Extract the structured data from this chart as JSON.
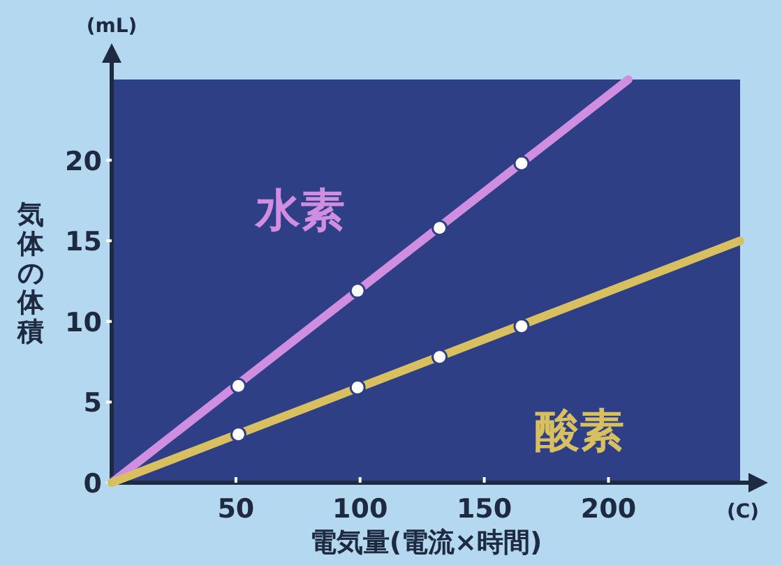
{
  "chart_data": {
    "type": "line",
    "xlabel": "電気量(電流×時間)",
    "ylabel": "気体の体積",
    "annotations": [
      "(mL)",
      "(C)"
    ],
    "xlim": [
      0,
      253
    ],
    "ylim": [
      0,
      25
    ],
    "xticks": [
      50,
      100,
      150,
      200
    ],
    "yticks": [
      0,
      5,
      10,
      15,
      20
    ],
    "grid": false,
    "series": [
      {
        "name": "水素",
        "color": "#d08ee0",
        "x": [
          0,
          208
        ],
        "values": [
          0,
          25
        ]
      },
      {
        "name": "酸素",
        "color": "#d8c060",
        "x": [
          0,
          253
        ],
        "values": [
          0,
          15
        ]
      },
      {
        "type": "scatter",
        "color": "#ffffff",
        "x": [
          51,
          99,
          132,
          165
        ],
        "values": [
          6,
          11.9,
          15.8,
          19.8
        ],
        "marker": "circle"
      },
      {
        "type": "scatter",
        "color": "#ffffff",
        "x": [
          51,
          99,
          132,
          165
        ],
        "values": [
          3,
          5.9,
          7.8,
          9.7
        ],
        "marker": "circle"
      }
    ]
  }
}
